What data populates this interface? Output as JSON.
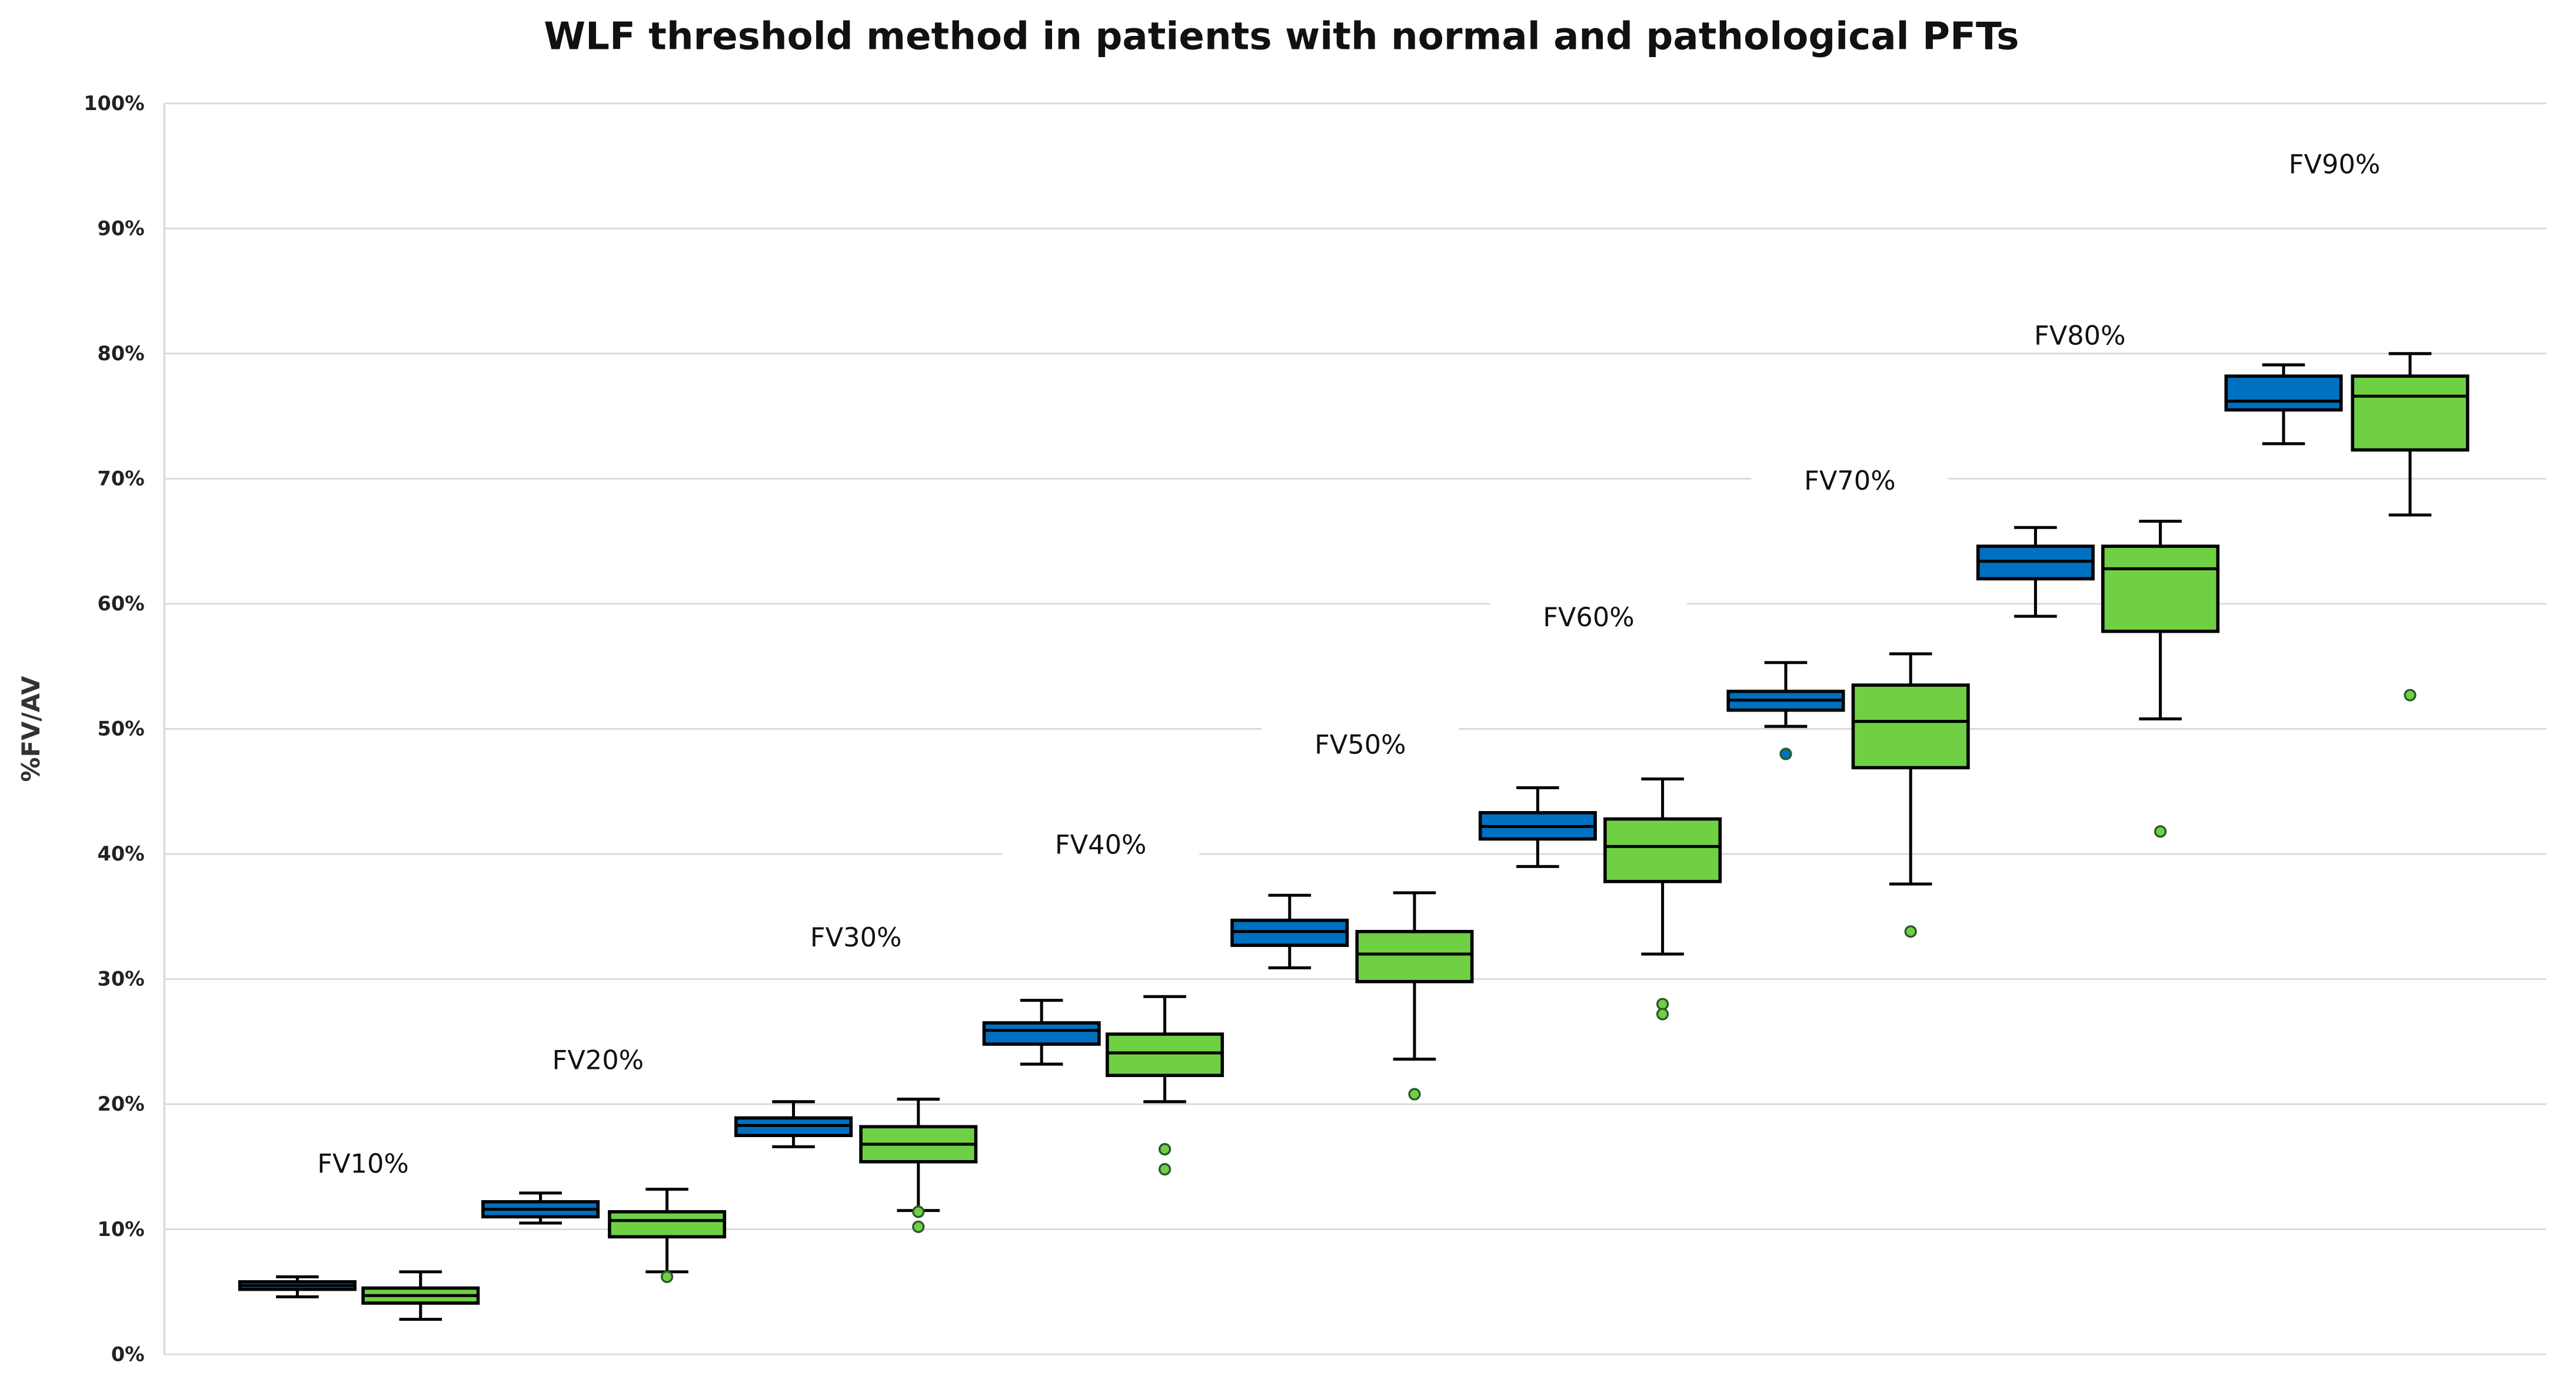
{
  "chart_data": {
    "type": "boxplot",
    "title": "WLF threshold method in patients with normal and pathological PFTs",
    "xlabel": "",
    "ylabel": "%FV/AV",
    "ylim": [
      0,
      100
    ],
    "yticks": [
      "0%",
      "10%",
      "20%",
      "30%",
      "40%",
      "50%",
      "60%",
      "70%",
      "80%",
      "90%",
      "100%"
    ],
    "grid": true,
    "legend": "none",
    "colors": {
      "normal": "#0070C0",
      "pathological": "#70D044",
      "outline": "#000000"
    },
    "categories": [
      "FV10%",
      "FV20%",
      "FV30%",
      "FV40%",
      "FV50%",
      "FV60%",
      "FV70%",
      "FV80%",
      "FV90%"
    ],
    "series": [
      {
        "color": "#0070C0",
        "boxes": [
          {
            "min": 4.6,
            "q1": 5.2,
            "median": 5.5,
            "q3": 5.8,
            "max": 6.2,
            "outliers": []
          },
          {
            "min": 10.5,
            "q1": 11.0,
            "median": 11.6,
            "q3": 12.2,
            "max": 12.9,
            "outliers": []
          },
          {
            "min": 16.6,
            "q1": 17.5,
            "median": 18.3,
            "q3": 18.9,
            "max": 20.2,
            "outliers": []
          },
          {
            "min": 23.2,
            "q1": 24.8,
            "median": 25.9,
            "q3": 26.5,
            "max": 28.3,
            "outliers": []
          },
          {
            "min": 30.9,
            "q1": 32.7,
            "median": 33.8,
            "q3": 34.7,
            "max": 36.7,
            "outliers": []
          },
          {
            "min": 39.0,
            "q1": 41.2,
            "median": 42.2,
            "q3": 43.3,
            "max": 45.3,
            "outliers": []
          },
          {
            "min": 50.2,
            "q1": 51.5,
            "median": 52.3,
            "q3": 53.0,
            "max": 55.3,
            "outliers": [
              48.0
            ]
          },
          {
            "min": 59.0,
            "q1": 62.0,
            "median": 63.4,
            "q3": 64.6,
            "max": 66.1,
            "outliers": []
          },
          {
            "min": 72.8,
            "q1": 75.5,
            "median": 76.2,
            "q3": 78.2,
            "max": 79.1,
            "outliers": []
          }
        ]
      },
      {
        "color": "#70D044",
        "boxes": [
          {
            "min": 2.8,
            "q1": 4.1,
            "median": 4.7,
            "q3": 5.3,
            "max": 6.6,
            "outliers": []
          },
          {
            "min": 6.6,
            "q1": 9.4,
            "median": 10.7,
            "q3": 11.4,
            "max": 13.2,
            "outliers": [
              6.2
            ]
          },
          {
            "min": 11.5,
            "q1": 15.4,
            "median": 16.8,
            "q3": 18.2,
            "max": 20.4,
            "outliers": [
              11.4,
              10.2
            ]
          },
          {
            "min": 20.2,
            "q1": 22.3,
            "median": 24.1,
            "q3": 25.6,
            "max": 28.6,
            "outliers": [
              16.4,
              14.8
            ]
          },
          {
            "min": 23.6,
            "q1": 29.8,
            "median": 32.0,
            "q3": 33.8,
            "max": 36.9,
            "outliers": [
              20.8
            ]
          },
          {
            "min": 32.0,
            "q1": 37.8,
            "median": 40.6,
            "q3": 42.8,
            "max": 46.0,
            "outliers": [
              28.0,
              27.2
            ]
          },
          {
            "min": 37.6,
            "q1": 46.9,
            "median": 50.6,
            "q3": 53.5,
            "max": 56.0,
            "outliers": [
              33.8
            ]
          },
          {
            "min": 50.8,
            "q1": 57.8,
            "median": 62.8,
            "q3": 64.6,
            "max": 66.6,
            "outliers": [
              41.8
            ]
          },
          {
            "min": 67.1,
            "q1": 72.3,
            "median": 76.6,
            "q3": 78.2,
            "max": 80.0,
            "outliers": [
              52.7
            ]
          }
        ]
      }
    ]
  }
}
